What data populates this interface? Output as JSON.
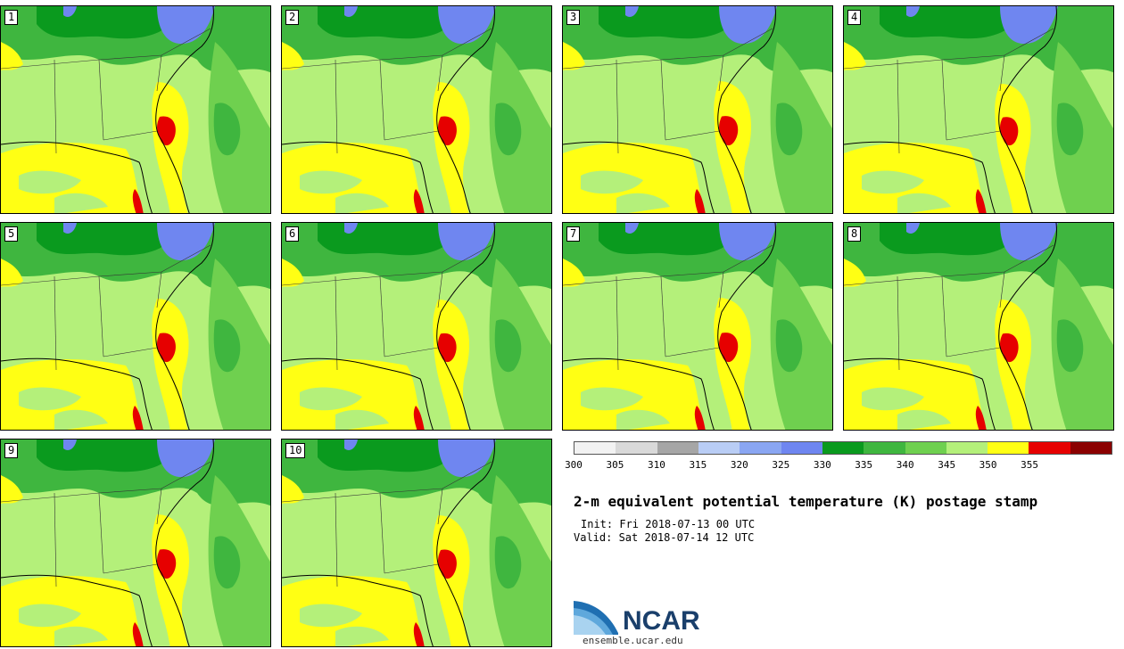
{
  "panels": [
    {
      "label": "1",
      "hot": 1.0,
      "red_spot": true
    },
    {
      "label": "2",
      "hot": 1.0,
      "red_spot": true
    },
    {
      "label": "3",
      "hot": 1.1,
      "red_spot": true
    },
    {
      "label": "4",
      "hot": 0.8,
      "red_spot": true
    },
    {
      "label": "5",
      "hot": 1.0,
      "red_spot": true
    },
    {
      "label": "6",
      "hot": 0.9,
      "red_spot": true
    },
    {
      "label": "7",
      "hot": 1.1,
      "red_spot": true
    },
    {
      "label": "8",
      "hot": 0.9,
      "red_spot": true
    },
    {
      "label": "9",
      "hot": 1.1,
      "red_spot": true
    },
    {
      "label": "10",
      "hot": 1.0,
      "red_spot": true
    }
  ],
  "colorbar": {
    "colors": [
      "#f2f2f2",
      "#d9d9d9",
      "#a6a6a6",
      "#b9cdf5",
      "#8aa6f2",
      "#6f86f0",
      "#0a9a1e",
      "#3fb63f",
      "#6fd04f",
      "#b4f07a",
      "#ffff14",
      "#e60000",
      "#8b0000"
    ],
    "ticks": [
      "300",
      "305",
      "310",
      "315",
      "320",
      "325",
      "330",
      "335",
      "340",
      "345",
      "350",
      "355"
    ]
  },
  "title": "2-m equivalent potential temperature (K) postage stamp",
  "init": "Init: Fri 2018-07-13 00 UTC",
  "valid": "Valid: Sat 2018-07-14 12 UTC",
  "logo": {
    "name": "NCAR",
    "url": "ensemble.ucar.edu"
  }
}
